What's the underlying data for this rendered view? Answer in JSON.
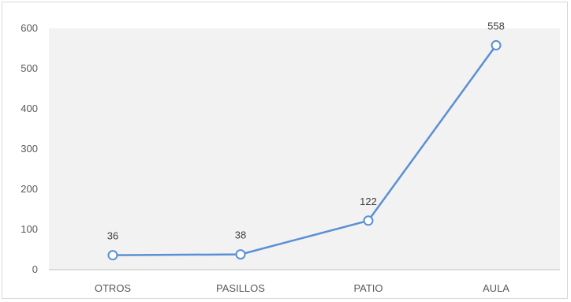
{
  "chart_data": {
    "type": "line",
    "categories": [
      "OTROS",
      "PASILLOS",
      "PATIO",
      "AULA"
    ],
    "series": [
      {
        "values": [
          36,
          38,
          122,
          558
        ]
      }
    ],
    "ylim": [
      0,
      600
    ],
    "yticks": [
      0,
      100,
      200,
      300,
      400,
      500,
      600
    ],
    "grid": false,
    "legend": "none",
    "title": "",
    "xlabel": "",
    "ylabel": "",
    "colors": {
      "line": "#5b8fd4",
      "marker_fill": "#ffffff",
      "plot_background": "#f2f2f2",
      "axis": "#bfbfbf"
    }
  }
}
